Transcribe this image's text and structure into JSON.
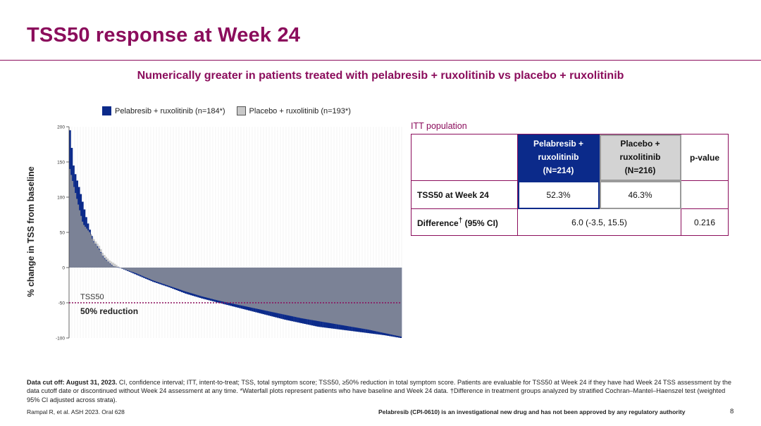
{
  "header": {
    "title": "TSS50 response at Week 24",
    "subtitle": "Numerically greater in patients treated with pelabresib + ruxolitinib vs placebo + ruxolitinib"
  },
  "colors": {
    "brand": "#8b0d5c",
    "pelabresib": "#0b2a8a",
    "placebo": "#c8c8c8",
    "overlap": "#7b8296"
  },
  "chart_data": {
    "type": "bar",
    "subtype": "waterfall",
    "ylabel": "% change in TSS from baseline",
    "ylim": [
      -100,
      200
    ],
    "yticks": [
      200,
      150,
      100,
      50,
      0,
      -50,
      -100
    ],
    "grid": true,
    "legend_position": "top",
    "series": [
      {
        "name": "Pelabresib + ruxolitinib (n=184*)",
        "color": "#0b2a8a",
        "n": 184
      },
      {
        "name": "Placebo + ruxolitinib (n=193*)",
        "color": "#c8c8c8",
        "n": 193
      }
    ],
    "reference_line": {
      "y": -50,
      "label": "TSS50",
      "sublabel": "50% reduction"
    },
    "pelabresib_knots": [
      [
        0,
        195
      ],
      [
        0.012,
        140
      ],
      [
        0.03,
        110
      ],
      [
        0.05,
        70
      ],
      [
        0.07,
        38
      ],
      [
        0.09,
        25
      ],
      [
        0.1,
        15
      ],
      [
        0.12,
        6
      ],
      [
        0.13,
        2
      ],
      [
        0.15,
        0
      ],
      [
        0.2,
        -10
      ],
      [
        0.25,
        -20
      ],
      [
        0.3,
        -28
      ],
      [
        0.35,
        -37
      ],
      [
        0.4,
        -44
      ],
      [
        0.45,
        -50
      ],
      [
        0.5,
        -56
      ],
      [
        0.55,
        -62
      ],
      [
        0.6,
        -68
      ],
      [
        0.65,
        -74
      ],
      [
        0.7,
        -79
      ],
      [
        0.75,
        -84
      ],
      [
        0.8,
        -87
      ],
      [
        0.85,
        -90
      ],
      [
        0.9,
        -93
      ],
      [
        0.95,
        -96
      ],
      [
        1,
        -100
      ]
    ],
    "placebo_knots": [
      [
        0,
        140
      ],
      [
        0.02,
        100
      ],
      [
        0.04,
        62
      ],
      [
        0.06,
        50
      ],
      [
        0.07,
        42
      ],
      [
        0.09,
        30
      ],
      [
        0.1,
        20
      ],
      [
        0.12,
        10
      ],
      [
        0.14,
        4
      ],
      [
        0.15,
        0
      ],
      [
        0.2,
        -8
      ],
      [
        0.25,
        -18
      ],
      [
        0.3,
        -26
      ],
      [
        0.35,
        -34
      ],
      [
        0.4,
        -41
      ],
      [
        0.45,
        -47
      ],
      [
        0.5,
        -52
      ],
      [
        0.55,
        -57
      ],
      [
        0.6,
        -62
      ],
      [
        0.65,
        -67
      ],
      [
        0.7,
        -72
      ],
      [
        0.75,
        -76
      ],
      [
        0.8,
        -80
      ],
      [
        0.85,
        -84
      ],
      [
        0.9,
        -88
      ],
      [
        0.95,
        -93
      ],
      [
        1,
        -98
      ]
    ]
  },
  "table": {
    "population_label": "ITT population",
    "headers": {
      "pelabresib": [
        "Pelabresib +",
        "ruxolitinib",
        "(N=214)"
      ],
      "placebo": [
        "Placebo +",
        "ruxolitinib",
        "(N=216)"
      ],
      "pvalue": "p-value"
    },
    "rows": {
      "tss50_label": "TSS50 at Week 24",
      "tss50_pel": "52.3%",
      "tss50_pla": "46.3%",
      "tss50_p": "",
      "diff_label_main": "Difference",
      "diff_label_sup": "†",
      "diff_label_rest": " (95% CI)",
      "diff_value": "6.0 (-3.5, 15.5)",
      "diff_p": "0.216"
    }
  },
  "footnote": {
    "lead": "Data cut off: August 31, 2023.",
    "text": " CI, confidence interval; ITT, intent-to-treat; TSS, total symptom score; TSS50, ≥50% reduction in total symptom score. Patients are evaluable for TSS50 at Week 24 if they have had Week 24 TSS assessment by the data cutoff date or discontinued without Week 24 assessment at any time. *Waterfall plots represent patients who have baseline and Week 24 data. †Difference in treatment groups analyzed by stratified Cochran–Mantel–Haenszel test (weighted 95% CI adjusted across strata)."
  },
  "footer": {
    "reference": "Rampal R, et al. ASH 2023. Oral 628",
    "disclaimer": "Pelabresib (CPI-0610) is an investigational new drug and has not been approved by any regulatory authority",
    "page": "8"
  }
}
